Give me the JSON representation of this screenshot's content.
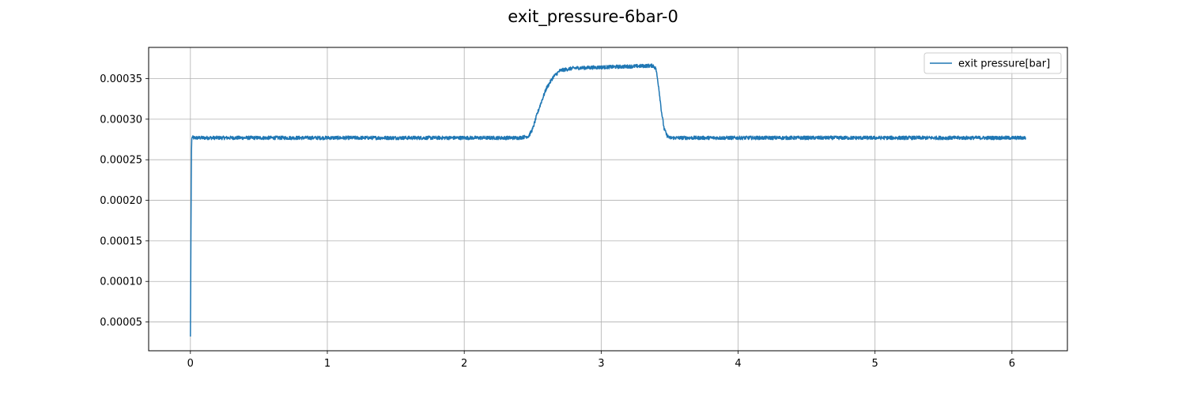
{
  "chart_data": {
    "type": "line",
    "title": "exit_pressure-6bar-0",
    "xlabel": "",
    "ylabel": "",
    "xlim": [
      -0.305,
      6.405
    ],
    "ylim": [
      1.45e-05,
      0.0003885
    ],
    "xticks": [
      0,
      1,
      2,
      3,
      4,
      5,
      6
    ],
    "xtick_labels": [
      "0",
      "1",
      "2",
      "3",
      "4",
      "5",
      "6"
    ],
    "yticks": [
      5e-05,
      0.0001,
      0.00015,
      0.0002,
      0.00025,
      0.0003,
      0.00035
    ],
    "ytick_labels": [
      "0.00005",
      "0.00010",
      "0.00015",
      "0.00020",
      "0.00025",
      "0.00030",
      "0.00035"
    ],
    "grid": true,
    "legend_position": "top-right",
    "series": [
      {
        "name": "exit pressure[bar]",
        "color": "#1f77b4",
        "x": [
          0,
          0.002,
          0.004,
          0.006,
          0.008,
          0.01,
          0.015,
          0.02,
          0.05,
          0.5,
          1.0,
          1.5,
          2.0,
          2.4,
          2.47,
          2.5,
          2.53,
          2.56,
          2.6,
          2.65,
          2.7,
          2.8,
          3.0,
          3.2,
          3.38,
          3.4,
          3.42,
          3.44,
          3.46,
          3.48,
          3.5,
          3.52,
          3.6,
          4.0,
          4.5,
          5.0,
          5.5,
          6.0,
          6.1
        ],
        "y": [
          3.2e-05,
          9e-05,
          0.00016,
          0.00022,
          0.000262,
          0.000276,
          0.000278,
          0.000277,
          0.000277,
          0.000277,
          0.000277,
          0.000277,
          0.000277,
          0.000277,
          0.000279,
          0.000288,
          0.000305,
          0.00032,
          0.000338,
          0.000352,
          0.00036,
          0.000363,
          0.000364,
          0.000365,
          0.000366,
          0.000362,
          0.00034,
          0.00031,
          0.000288,
          0.00028,
          0.000277,
          0.000277,
          0.000277,
          0.000277,
          0.000277,
          0.000277,
          0.000277,
          0.000277,
          0.000277
        ],
        "noise_amplitude": 2.2e-06
      }
    ]
  }
}
